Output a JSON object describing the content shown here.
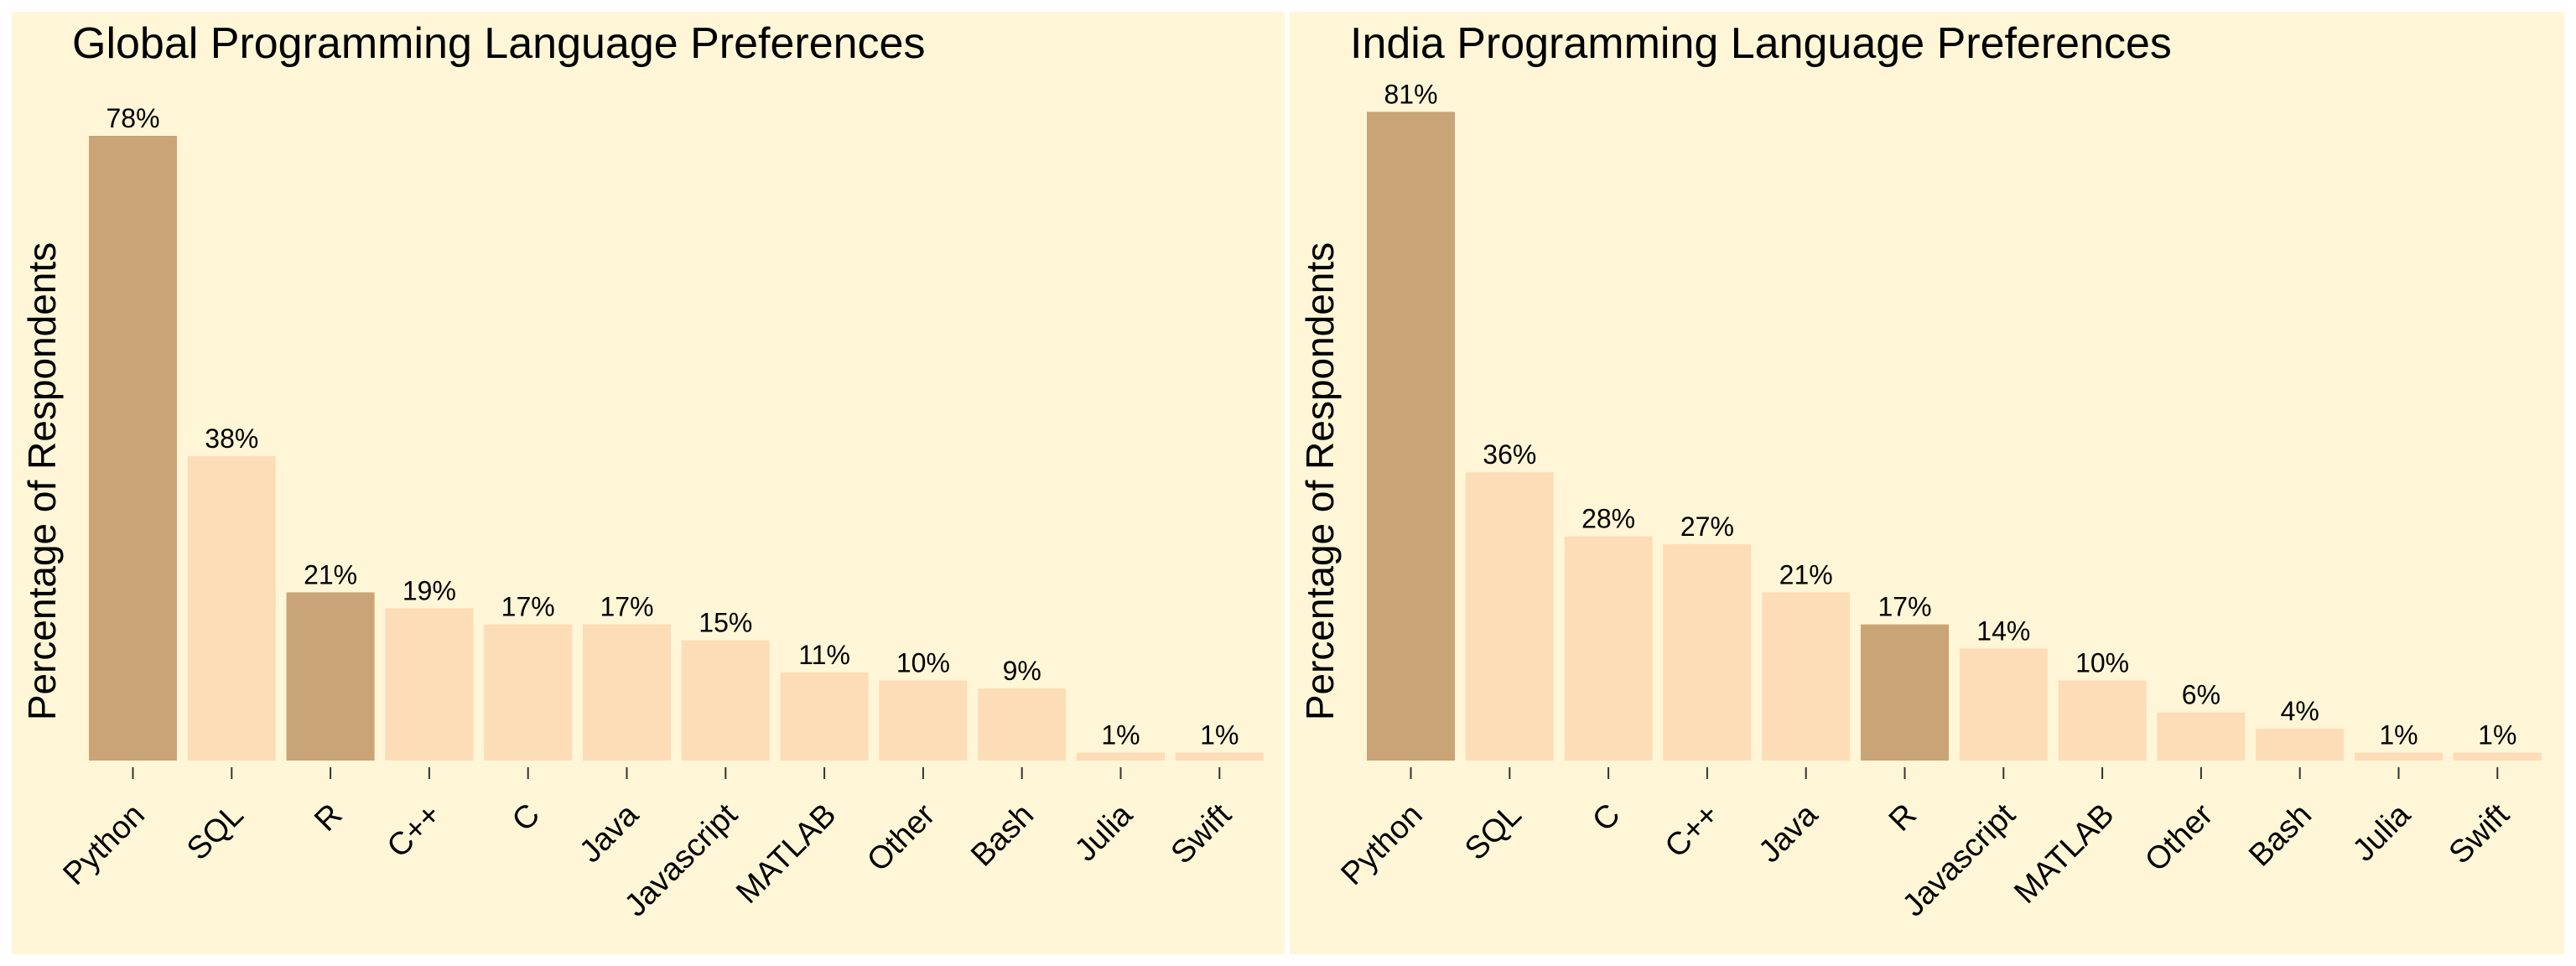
{
  "chart_data": [
    {
      "type": "bar",
      "title": "Global Programming Language Preferences",
      "ylabel": "Percentage of Respondents",
      "xlabel": "",
      "ylim": [
        0,
        82
      ],
      "categories": [
        "Python",
        "SQL",
        "R",
        "C++",
        "C",
        "Java",
        "Javascript",
        "MATLAB",
        "Other",
        "Bash",
        "Julia",
        "Swift"
      ],
      "values": [
        78,
        38,
        21,
        19,
        17,
        17,
        15,
        11,
        10,
        9,
        1,
        1
      ],
      "data_labels": [
        "78%",
        "38%",
        "21%",
        "19%",
        "17%",
        "17%",
        "15%",
        "11%",
        "10%",
        "9%",
        "1%",
        "1%"
      ],
      "highlighted": [
        "Python",
        "R"
      ]
    },
    {
      "type": "bar",
      "title": "India Programming Language Preferences",
      "ylabel": "Percentage of Respondents",
      "xlabel": "",
      "ylim": [
        0,
        85
      ],
      "categories": [
        "Python",
        "SQL",
        "C",
        "C++",
        "Java",
        "R",
        "Javascript",
        "MATLAB",
        "Other",
        "Bash",
        "Julia",
        "Swift"
      ],
      "values": [
        81,
        36,
        28,
        27,
        21,
        17,
        14,
        10,
        6,
        4,
        1,
        1
      ],
      "data_labels": [
        "81%",
        "36%",
        "28%",
        "27%",
        "21%",
        "17%",
        "14%",
        "10%",
        "6%",
        "4%",
        "1%",
        "1%"
      ],
      "highlighted": [
        "Python",
        "R"
      ]
    }
  ],
  "colors": {
    "background": "#fef6d6",
    "bar_default": "#fddcb8",
    "bar_highlight": "#c8a476",
    "text": "#000000"
  }
}
